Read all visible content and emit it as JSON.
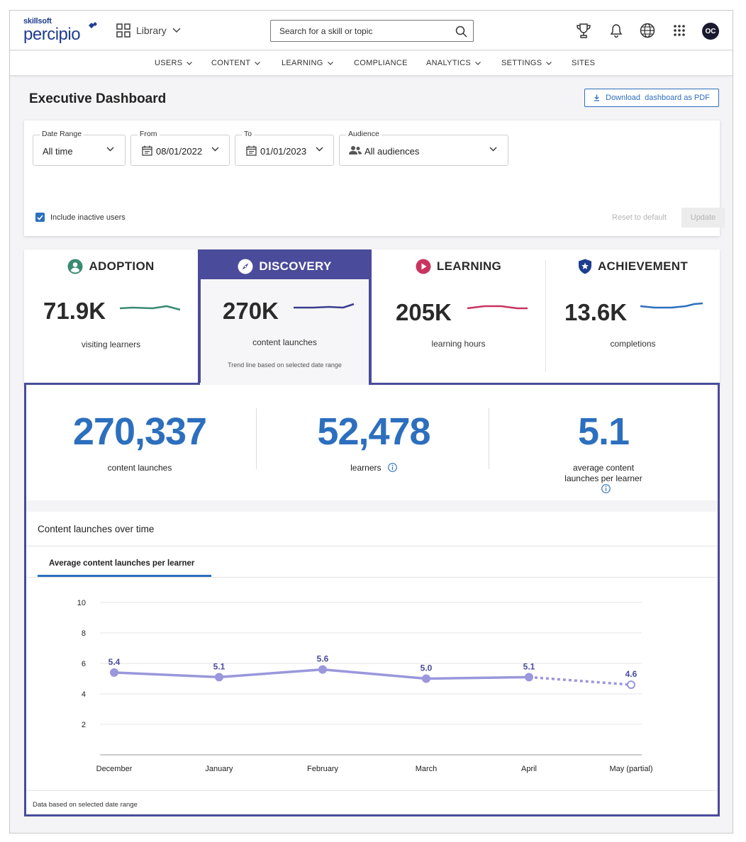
{
  "header": {
    "brand_small": "skillsoft",
    "brand_big": "percipio",
    "library_label": "Library",
    "search_placeholder": "Search for a skill or topic",
    "avatar_initials": "OC"
  },
  "nav": {
    "items": [
      {
        "label": "USERS",
        "has_menu": true
      },
      {
        "label": "CONTENT",
        "has_menu": true
      },
      {
        "label": "LEARNING",
        "has_menu": true
      },
      {
        "label": "COMPLIANCE",
        "has_menu": false
      },
      {
        "label": "ANALYTICS",
        "has_menu": true
      },
      {
        "label": "SETTINGS",
        "has_menu": true
      },
      {
        "label": "SITES",
        "has_menu": false
      }
    ]
  },
  "page": {
    "title": "Executive Dashboard",
    "download_label": "Download  dashboard as PDF"
  },
  "filters": {
    "date_range": {
      "label": "Date Range",
      "value": "All time"
    },
    "from": {
      "label": "From",
      "value": "08/01/2022"
    },
    "to": {
      "label": "To",
      "value": "01/01/2023"
    },
    "audience": {
      "label": "Audience",
      "value": "All audiences"
    },
    "include_inactive": {
      "label": "Include inactive users",
      "checked": true
    },
    "reset_label": "Reset to default",
    "update_label": "Update"
  },
  "metric_tabs": [
    {
      "title": "ADOPTION",
      "value": "71.9K",
      "label": "visiting learners",
      "color": "#3a8a72",
      "icon": "user-circle-icon"
    },
    {
      "title": "DISCOVERY",
      "value": "270K",
      "label": "content launches",
      "color": "#3b3d8c",
      "icon": "compass-icon",
      "note": "Trend line based on selected date range",
      "active": true
    },
    {
      "title": "LEARNING",
      "value": "205K",
      "label": "learning hours",
      "color": "#c9345f",
      "icon": "play-circle-icon"
    },
    {
      "title": "ACHIEVEMENT",
      "value": "13.6K",
      "label": "completions",
      "color": "#2c6fbe",
      "icon": "star-shield-icon"
    }
  ],
  "detail": {
    "stats": [
      {
        "value": "270,337",
        "label": "content launches"
      },
      {
        "value": "52,478",
        "label": "learners"
      },
      {
        "value": "5.1",
        "label": "average content launches per learner"
      }
    ],
    "chart_section_title": "Content launches over time",
    "chart_tab": "Average content launches per learner",
    "footnote": "Data based on selected date range"
  },
  "chart_data": {
    "type": "line",
    "title": "",
    "xlabel": "",
    "ylabel": "",
    "categories": [
      "December",
      "January",
      "February",
      "March",
      "April",
      "May (partial)"
    ],
    "values": [
      5.4,
      5.1,
      5.6,
      5.0,
      5.1,
      4.6
    ],
    "data_labels": [
      "5.4",
      "5.1",
      "5.6",
      "5.0",
      "5.1",
      "4.6"
    ],
    "partial_last_point": true,
    "ylim": [
      0,
      10
    ],
    "yticks": [
      2,
      4,
      6,
      8,
      10
    ],
    "grid": true,
    "line_color": "#9a97dc",
    "label_color": "#4a4b9a"
  }
}
